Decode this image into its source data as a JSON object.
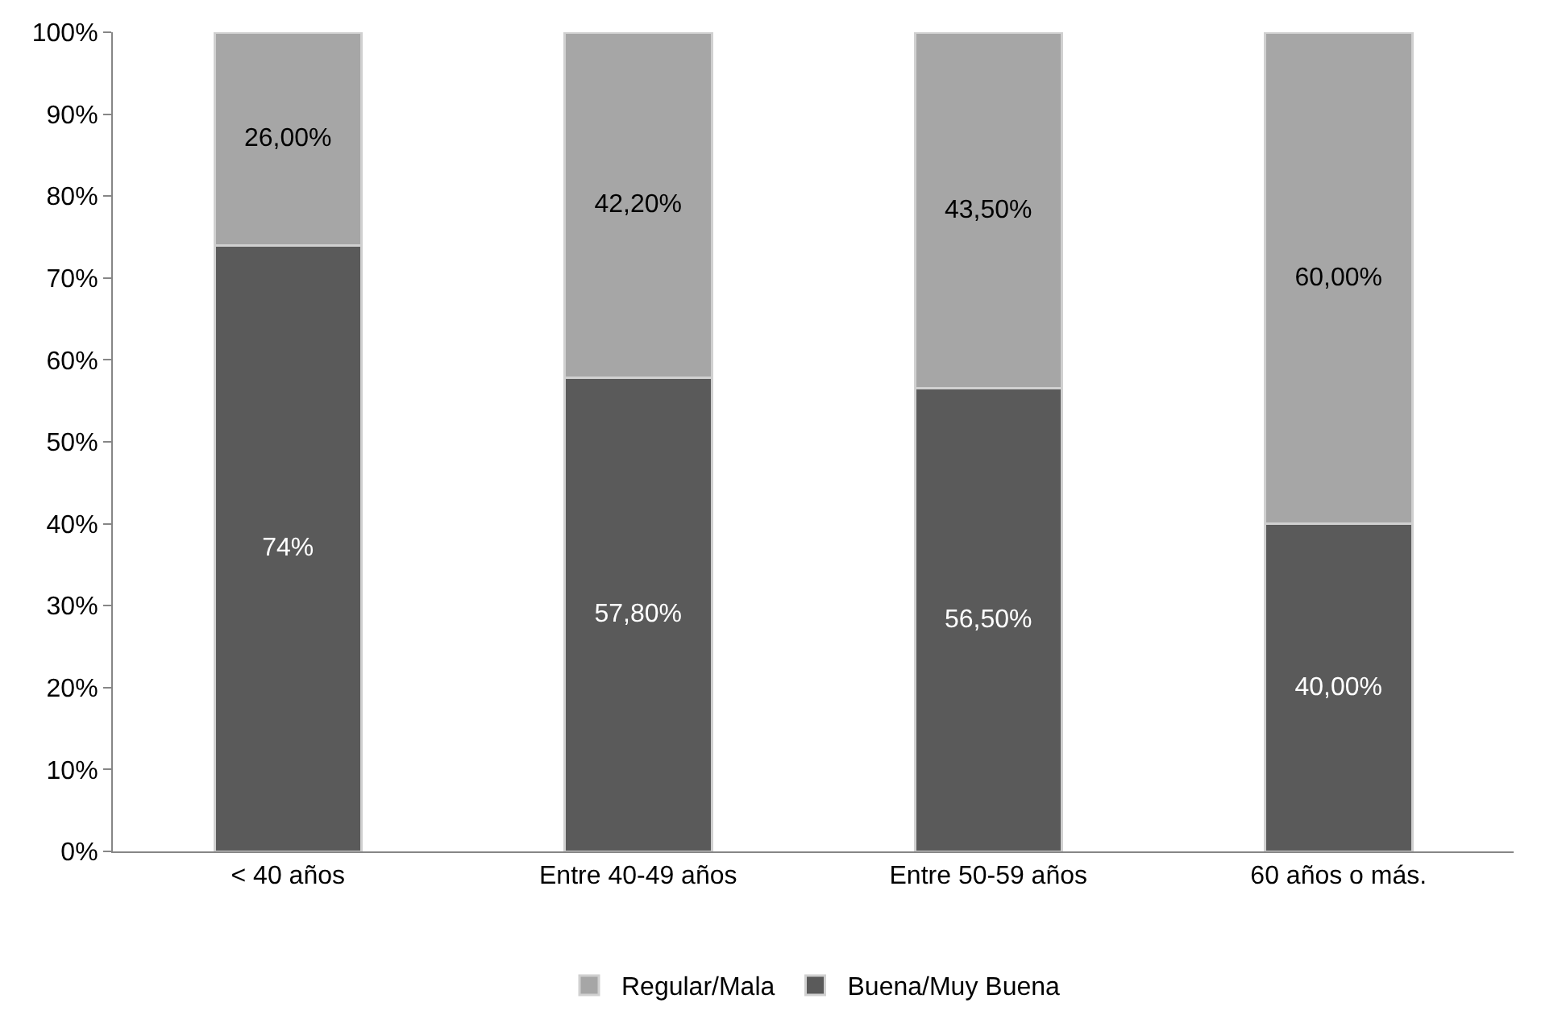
{
  "chart_data": {
    "type": "bar",
    "stacked": true,
    "categories": [
      "< 40 años",
      "Entre 40-49 años",
      "Entre 50-59 años",
      "60 años o más."
    ],
    "series": [
      {
        "name": "Buena/Muy Buena",
        "color": "#5a5a5a",
        "values": [
          74,
          57.8,
          56.5,
          40
        ],
        "value_labels": [
          "74%",
          "57,80%",
          "56,50%",
          "40,00%"
        ]
      },
      {
        "name": "Regular/Mala",
        "color": "#a6a6a6",
        "values": [
          26,
          42.2,
          43.5,
          60
        ],
        "value_labels": [
          "26,00%",
          "42,20%",
          "43,50%",
          "60,00%"
        ]
      }
    ],
    "ylim": [
      0,
      100
    ],
    "yticks": [
      {
        "value": 0,
        "label": "0%"
      },
      {
        "value": 10,
        "label": "10%"
      },
      {
        "value": 20,
        "label": "20%"
      },
      {
        "value": 30,
        "label": "30%"
      },
      {
        "value": 40,
        "label": "40%"
      },
      {
        "value": 50,
        "label": "50%"
      },
      {
        "value": 60,
        "label": "60%"
      },
      {
        "value": 70,
        "label": "70%"
      },
      {
        "value": 80,
        "label": "80%"
      },
      {
        "value": 90,
        "label": "90%"
      },
      {
        "value": 100,
        "label": "100%"
      }
    ],
    "grid": false,
    "legend": "bottom"
  }
}
